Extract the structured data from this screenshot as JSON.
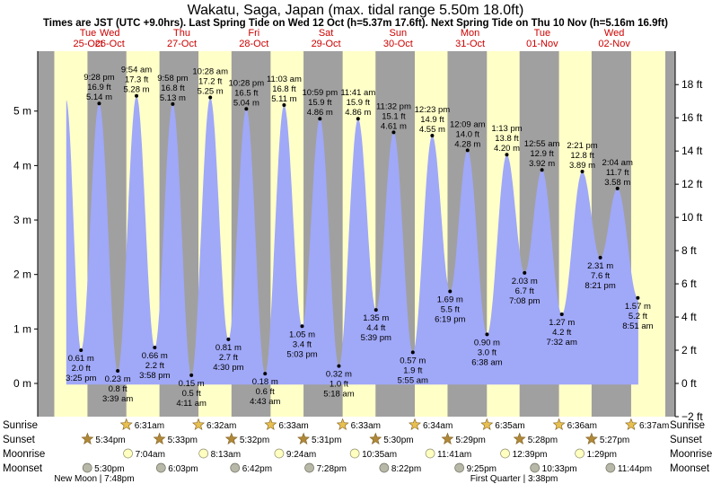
{
  "chart_data": {
    "type": "area",
    "title": "Wakatu, Saga, Japan (max. tidal range 5.50m 18.0ft)",
    "subtitle": "Times are JST (UTC +9.0hrs). Last Spring Tide on Wed 12 Oct (h=5.37m 17.6ft). Next Spring Tide on Thu 10 Nov (h=5.16m 16.9ft)",
    "left_axis": {
      "unit": "m",
      "ticks": [
        0,
        1,
        2,
        3,
        4,
        5
      ],
      "tick_labels": [
        "0 m",
        "1 m",
        "2 m",
        "3 m",
        "4 m",
        "5 m"
      ],
      "range": [
        -0.61,
        6.1
      ]
    },
    "right_axis": {
      "unit": "ft",
      "ticks": [
        -2,
        0,
        2,
        4,
        6,
        8,
        10,
        12,
        14,
        16,
        18
      ],
      "tick_labels": [
        "−2 ft",
        "0 ft",
        "2 ft",
        "4 ft",
        "6 ft",
        "8 ft",
        "10 ft",
        "12 ft",
        "14 ft",
        "16 ft",
        "18 ft"
      ]
    },
    "days": [
      {
        "dow": "Tue",
        "date": "25-Oct"
      },
      {
        "dow": "Wed",
        "date": "26-Oct"
      },
      {
        "dow": "Thu",
        "date": "27-Oct"
      },
      {
        "dow": "Fri",
        "date": "28-Oct"
      },
      {
        "dow": "Sat",
        "date": "29-Oct"
      },
      {
        "dow": "Sun",
        "date": "30-Oct"
      },
      {
        "dow": "Mon",
        "date": "31-Oct"
      },
      {
        "dow": "Tue",
        "date": "01-Nov"
      },
      {
        "dow": "Wed",
        "date": "02-Nov"
      }
    ],
    "x_start_hours": 1,
    "x_end_hours": 210,
    "curve_start": {
      "t": 10.5,
      "h": 5.2
    },
    "curve_end": {
      "t": 201.0,
      "h": 1.5
    },
    "tides": [
      {
        "t": 15.42,
        "h": 0.61,
        "time": "3:25 pm",
        "m": "0.61 m",
        "ft": "2.0 ft",
        "type": "low"
      },
      {
        "t": 21.47,
        "h": 5.14,
        "time": "9:28 pm",
        "m": "5.14 m",
        "ft": "16.9 ft",
        "type": "high"
      },
      {
        "t": 27.65,
        "h": 0.23,
        "time": "3:39 am",
        "m": "0.23 m",
        "ft": "0.8 ft",
        "type": "low"
      },
      {
        "t": 33.9,
        "h": 5.28,
        "time": "9:54 am",
        "m": "5.28 m",
        "ft": "17.3 ft",
        "type": "high"
      },
      {
        "t": 39.97,
        "h": 0.66,
        "time": "3:58 pm",
        "m": "0.66 m",
        "ft": "2.2 ft",
        "type": "low"
      },
      {
        "t": 45.97,
        "h": 5.13,
        "time": "9:58 pm",
        "m": "5.13 m",
        "ft": "16.8 ft",
        "type": "high"
      },
      {
        "t": 52.18,
        "h": 0.15,
        "time": "4:11 am",
        "m": "0.15 m",
        "ft": "0.5 ft",
        "type": "low"
      },
      {
        "t": 58.47,
        "h": 5.25,
        "time": "10:28 am",
        "m": "5.25 m",
        "ft": "17.2 ft",
        "type": "high"
      },
      {
        "t": 64.5,
        "h": 0.81,
        "time": "4:30 pm",
        "m": "0.81 m",
        "ft": "2.7 ft",
        "type": "low"
      },
      {
        "t": 70.47,
        "h": 5.04,
        "time": "10:28 pm",
        "m": "5.04 m",
        "ft": "16.5 ft",
        "type": "high"
      },
      {
        "t": 76.72,
        "h": 0.18,
        "time": "4:43 am",
        "m": "0.18 m",
        "ft": "0.6 ft",
        "type": "low"
      },
      {
        "t": 83.05,
        "h": 5.11,
        "time": "11:03 am",
        "m": "5.11 m",
        "ft": "16.8 ft",
        "type": "high"
      },
      {
        "t": 89.05,
        "h": 1.05,
        "time": "5:03 pm",
        "m": "1.05 m",
        "ft": "3.4 ft",
        "type": "low"
      },
      {
        "t": 94.98,
        "h": 4.86,
        "time": "10:59 pm",
        "m": "4.86 m",
        "ft": "15.9 ft",
        "type": "high"
      },
      {
        "t": 101.3,
        "h": 0.32,
        "time": "5:18 am",
        "m": "0.32 m",
        "ft": "1.0 ft",
        "type": "low"
      },
      {
        "t": 107.68,
        "h": 4.86,
        "time": "11:41 am",
        "m": "4.86 m",
        "ft": "15.9 ft",
        "type": "high"
      },
      {
        "t": 113.65,
        "h": 1.35,
        "time": "5:39 pm",
        "m": "1.35 m",
        "ft": "4.4 ft",
        "type": "low"
      },
      {
        "t": 119.53,
        "h": 4.61,
        "time": "11:32 pm",
        "m": "4.61 m",
        "ft": "15.1 ft",
        "type": "high"
      },
      {
        "t": 125.92,
        "h": 0.57,
        "time": "5:55 am",
        "m": "0.57 m",
        "ft": "1.9 ft",
        "type": "low"
      },
      {
        "t": 132.38,
        "h": 4.55,
        "time": "12:23 pm",
        "m": "4.55 m",
        "ft": "14.9 ft",
        "type": "high"
      },
      {
        "t": 138.32,
        "h": 1.69,
        "time": "6:19 pm",
        "m": "1.69 m",
        "ft": "5.5 ft",
        "type": "low"
      },
      {
        "t": 144.15,
        "h": 4.28,
        "time": "12:09 am",
        "m": "4.28 m",
        "ft": "14.0 ft",
        "type": "high"
      },
      {
        "t": 150.63,
        "h": 0.9,
        "time": "6:38 am",
        "m": "0.90 m",
        "ft": "3.0 ft",
        "type": "low"
      },
      {
        "t": 157.22,
        "h": 4.2,
        "time": "1:13 pm",
        "m": "4.20 m",
        "ft": "13.8 ft",
        "type": "high"
      },
      {
        "t": 163.13,
        "h": 2.03,
        "time": "7:08 pm",
        "m": "2.03 m",
        "ft": "6.7 ft",
        "type": "low"
      },
      {
        "t": 168.92,
        "h": 3.92,
        "time": "12:55 am",
        "m": "3.92 m",
        "ft": "12.9 ft",
        "type": "high"
      },
      {
        "t": 175.53,
        "h": 1.27,
        "time": "7:32 am",
        "m": "1.27 m",
        "ft": "4.2 ft",
        "type": "low"
      },
      {
        "t": 182.35,
        "h": 3.89,
        "time": "2:21 pm",
        "m": "3.89 m",
        "ft": "12.8 ft",
        "type": "high"
      },
      {
        "t": 188.35,
        "h": 2.31,
        "time": "8:21 pm",
        "m": "2.31 m",
        "ft": "7.6 ft",
        "type": "low"
      },
      {
        "t": 194.07,
        "h": 3.58,
        "time": "2:04 am",
        "m": "3.58 m",
        "ft": "11.7 ft",
        "type": "high"
      },
      {
        "t": 200.85,
        "h": 1.57,
        "time": "8:51 am",
        "m": "1.57 m",
        "ft": "5.2 ft",
        "type": "low"
      }
    ],
    "night_bands": [
      [
        1,
        6.52
      ],
      [
        17.57,
        30.52
      ],
      [
        41.55,
        54.53
      ],
      [
        65.53,
        78.55
      ],
      [
        89.52,
        102.55
      ],
      [
        113.5,
        126.57
      ],
      [
        137.48,
        150.58
      ],
      [
        161.47,
        174.6
      ],
      [
        185.45,
        198.62
      ]
    ],
    "rows": [
      "Sunrise",
      "Sunset",
      "Moonrise",
      "Moonset"
    ],
    "sunrise": [
      {
        "t": 30.52,
        "label": "6:31am"
      },
      {
        "t": 54.53,
        "label": "6:32am"
      },
      {
        "t": 78.55,
        "label": "6:33am"
      },
      {
        "t": 102.55,
        "label": "6:33am"
      },
      {
        "t": 126.57,
        "label": "6:34am"
      },
      {
        "t": 150.58,
        "label": "6:35am"
      },
      {
        "t": 174.6,
        "label": "6:36am"
      },
      {
        "t": 198.62,
        "label": "6:37am"
      }
    ],
    "sunset": [
      {
        "t": 17.57,
        "label": "5:34pm"
      },
      {
        "t": 41.55,
        "label": "5:33pm"
      },
      {
        "t": 65.53,
        "label": "5:32pm"
      },
      {
        "t": 89.52,
        "label": "5:31pm"
      },
      {
        "t": 113.5,
        "label": "5:30pm"
      },
      {
        "t": 137.48,
        "label": "5:29pm"
      },
      {
        "t": 161.47,
        "label": "5:28pm"
      },
      {
        "t": 185.45,
        "label": "5:27pm"
      }
    ],
    "moonrise": [
      {
        "t": 31.07,
        "label": "7:04am"
      },
      {
        "t": 56.22,
        "label": "8:13am"
      },
      {
        "t": 81.4,
        "label": "9:24am"
      },
      {
        "t": 106.58,
        "label": "10:35am"
      },
      {
        "t": 131.68,
        "label": "11:41am"
      },
      {
        "t": 156.65,
        "label": "12:39pm"
      },
      {
        "t": 181.48,
        "label": "1:29pm"
      }
    ],
    "moonset": [
      {
        "t": 17.5,
        "label": "5:30pm"
      },
      {
        "t": 42.05,
        "label": "6:03pm"
      },
      {
        "t": 66.7,
        "label": "6:42pm"
      },
      {
        "t": 91.47,
        "label": "7:28pm"
      },
      {
        "t": 116.37,
        "label": "8:22pm"
      },
      {
        "t": 141.42,
        "label": "9:25pm"
      },
      {
        "t": 166.55,
        "label": "10:33pm"
      },
      {
        "t": 191.73,
        "label": "11:44pm"
      }
    ],
    "moon_phases": [
      {
        "t": 19.8,
        "label": "New Moon | 7:48pm"
      },
      {
        "t": 159.63,
        "label": "First Quarter | 3:38pm"
      }
    ],
    "colors": {
      "day": "#ffffc8",
      "night": "#a0a0a0",
      "water": "#a0a8f8",
      "axis_bg": "#a0a0a0",
      "day_label": "#cc0000",
      "sun_icon": "#e8c050",
      "sunset_icon": "#b08838",
      "moonrise_icon": "#ffffc0",
      "moonset_icon": "#b8b8a8"
    }
  }
}
